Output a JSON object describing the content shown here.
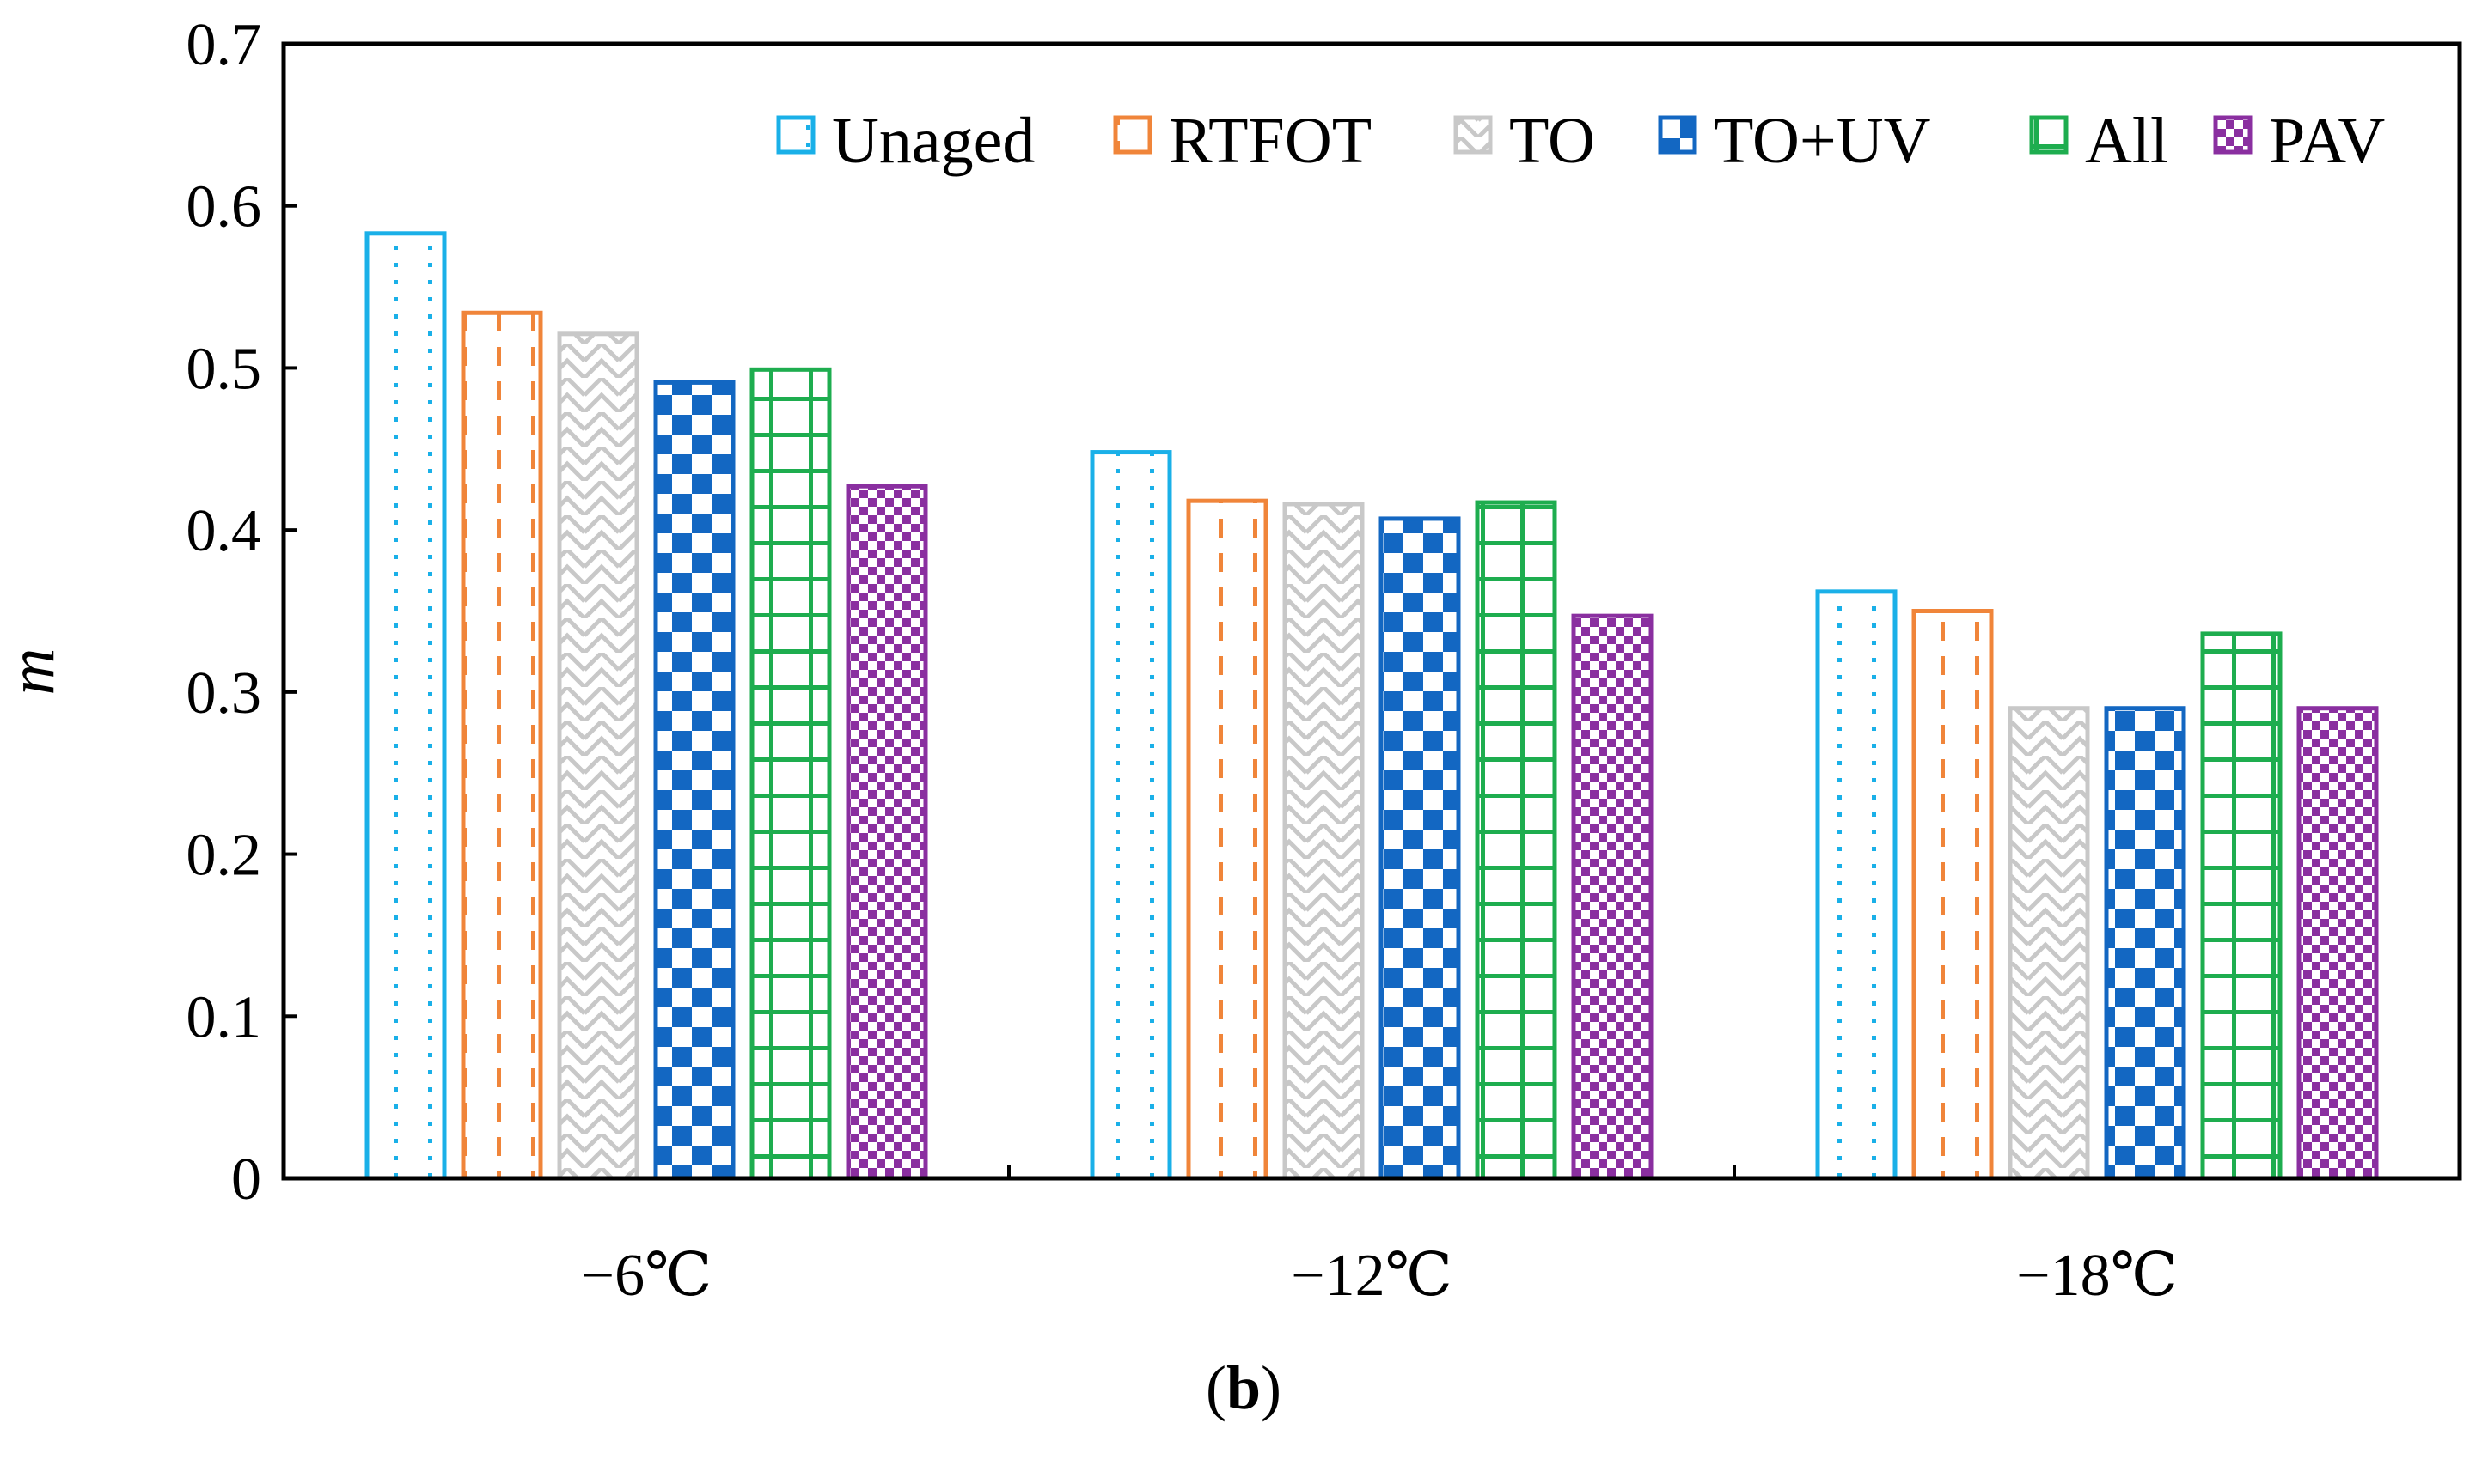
{
  "chart_data": {
    "type": "bar",
    "title": "",
    "xlabel": "",
    "ylabel": "m",
    "ylim": [
      0,
      0.7
    ],
    "yticks": [
      0,
      0.1,
      0.2,
      0.3,
      0.4,
      0.5,
      0.6,
      0.7
    ],
    "ytick_labels": [
      "0",
      "0.1",
      "0.2",
      "0.3",
      "0.4",
      "0.5",
      "0.6",
      "0.7"
    ],
    "categories": [
      "−6℃",
      "−12℃",
      "−18℃"
    ],
    "grid": false,
    "legend_position": "top-right",
    "series": [
      {
        "name": "Unaged",
        "color": "#1ab0e8",
        "pattern": "dots",
        "values": [
          0.583,
          0.448,
          0.362
        ]
      },
      {
        "name": "RTFOT",
        "color": "#f0853a",
        "pattern": "dashes",
        "values": [
          0.534,
          0.418,
          0.35
        ]
      },
      {
        "name": "TO",
        "color": "#c8c8c8",
        "pattern": "zigzag",
        "values": [
          0.521,
          0.416,
          0.29
        ]
      },
      {
        "name": "TO+UV",
        "color": "#1367c2",
        "pattern": "checker",
        "values": [
          0.491,
          0.407,
          0.29
        ]
      },
      {
        "name": "All",
        "color": "#1ead4f",
        "pattern": "grid",
        "values": [
          0.499,
          0.417,
          0.336
        ]
      },
      {
        "name": "PAV",
        "color": "#8a2fa0",
        "pattern": "finechecker",
        "values": [
          0.427,
          0.347,
          0.29
        ]
      }
    ],
    "caption_open": "(",
    "caption_letter": "b",
    "caption_close": ")"
  }
}
